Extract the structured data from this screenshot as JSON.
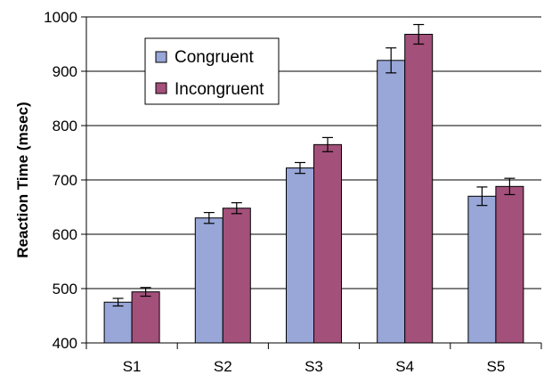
{
  "chart_data": {
    "type": "bar",
    "categories": [
      "S1",
      "S2",
      "S3",
      "S4",
      "S5"
    ],
    "series": [
      {
        "name": "Congruent",
        "color": "#98a6d8",
        "values": [
          475,
          630,
          722,
          920,
          670
        ],
        "errors": [
          7,
          10,
          10,
          23,
          17
        ]
      },
      {
        "name": "Incongruent",
        "color": "#a3507a",
        "values": [
          494,
          648,
          765,
          968,
          688
        ],
        "errors": [
          8,
          10,
          13,
          18,
          15
        ]
      }
    ],
    "ylabel": "Reaction Time (msec)",
    "ylim": [
      400,
      1000
    ],
    "yticks": [
      400,
      500,
      600,
      700,
      800,
      900,
      1000
    ],
    "grid": true,
    "legend_position": "top-left"
  }
}
